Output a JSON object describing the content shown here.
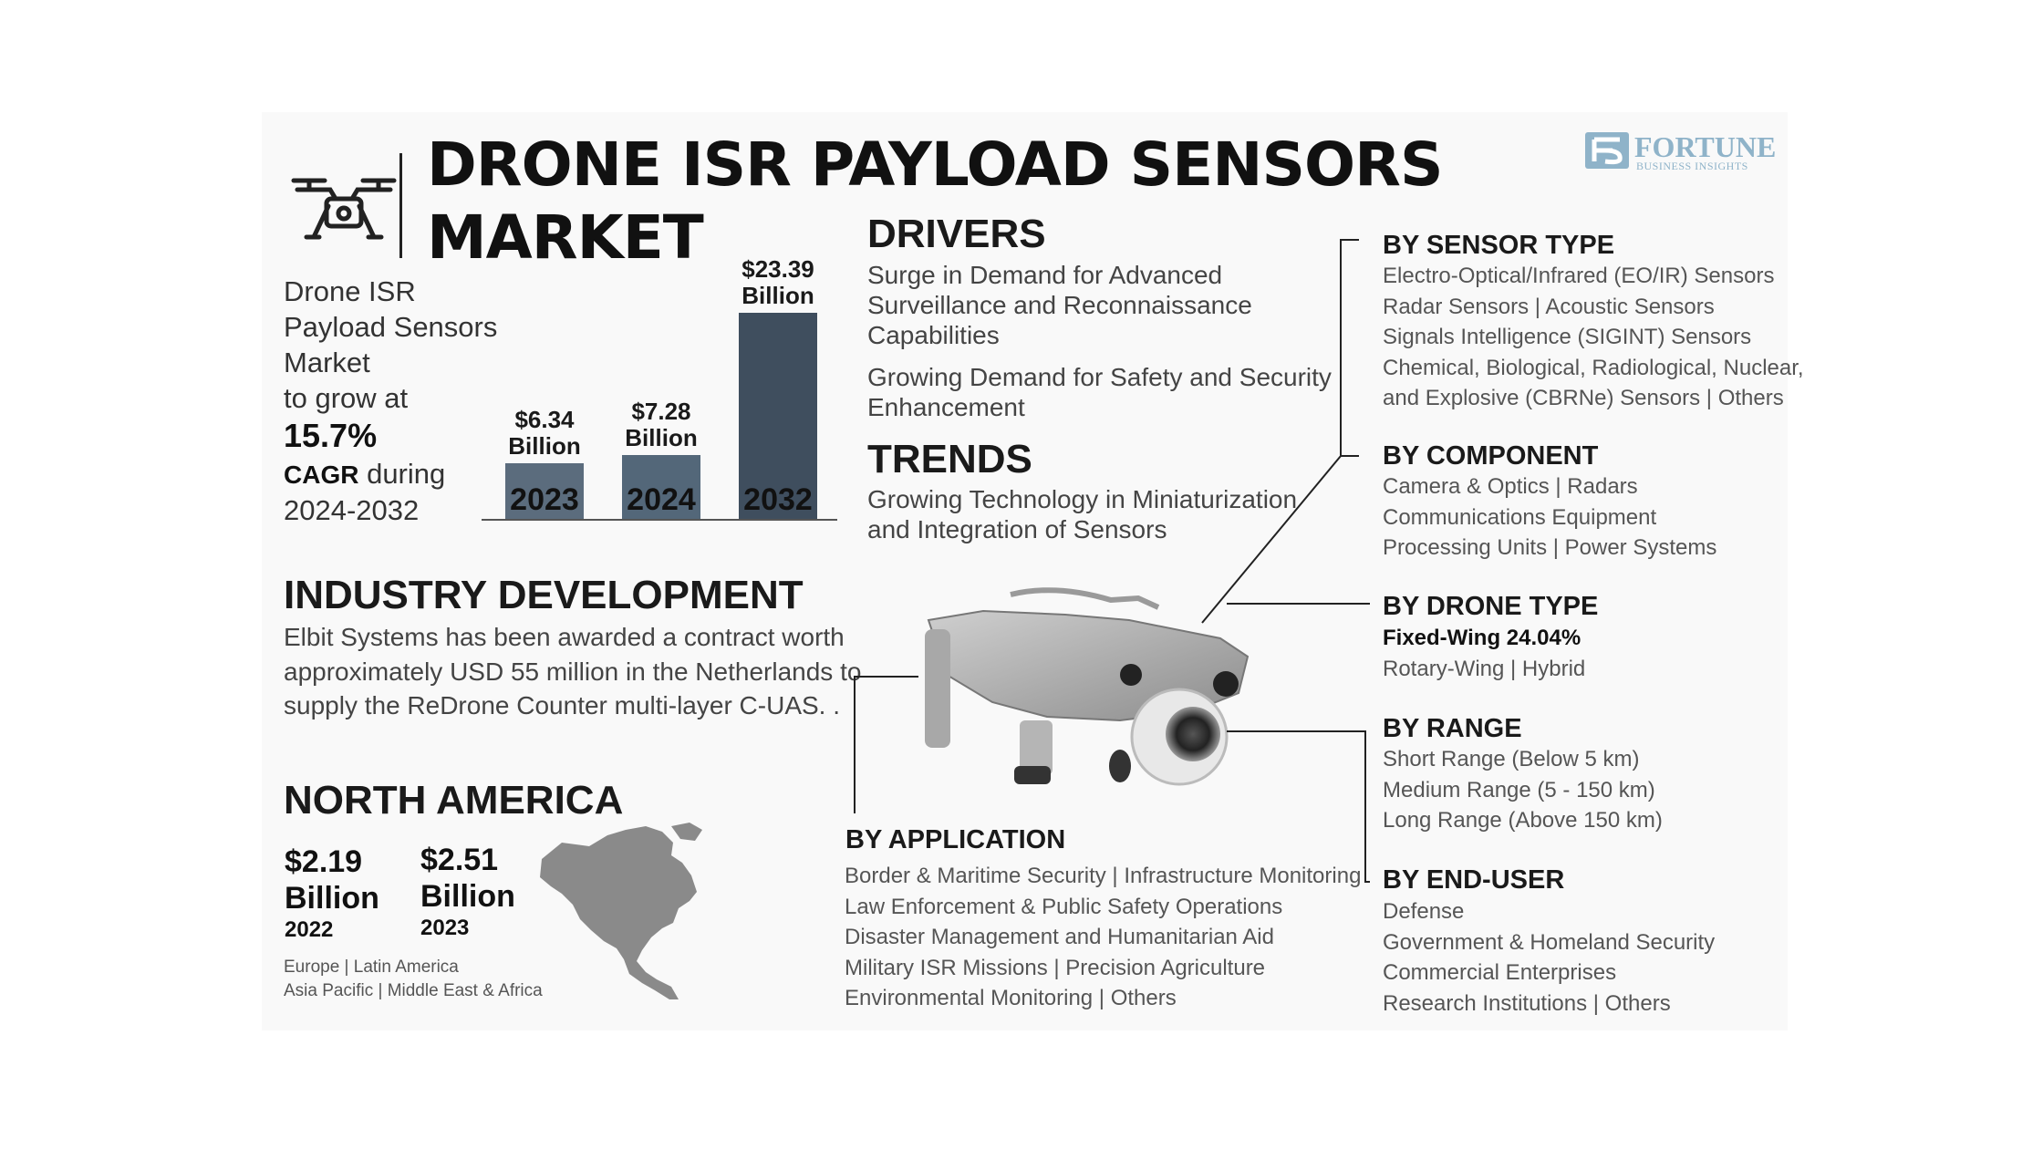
{
  "title": {
    "line1": "DRONE ISR PAYLOAD SENSORS",
    "line2": "MARKET"
  },
  "logo": {
    "name": "FORTUNE",
    "tagline": "BUSINESS INSIGHTS",
    "color": "#8fb3c9"
  },
  "growth": {
    "l1": "Drone ISR",
    "l2": "Payload Sensors",
    "l3": "Market",
    "l4": "to grow at",
    "cagr": "15.7%",
    "cagr_label": "CAGR",
    "during": "during",
    "period": "2024-2032"
  },
  "bars": [
    {
      "year": "2023",
      "value_text": "$6.34",
      "unit": "Billion",
      "value": 6.34,
      "color": "#5b6c7d"
    },
    {
      "year": "2024",
      "value_text": "$7.28",
      "unit": "Billion",
      "value": 7.28,
      "color": "#536779"
    },
    {
      "year": "2032",
      "value_text": "$23.39",
      "unit": "Billion",
      "value": 23.39,
      "color": "#3f4e5e"
    }
  ],
  "drivers": {
    "heading": "DRIVERS",
    "items": [
      [
        "Surge in Demand for Advanced",
        "Surveillance and Reconnaissance",
        "Capabilities"
      ],
      [
        "Growing Demand for Safety and Security",
        "Enhancement"
      ]
    ]
  },
  "trends": {
    "heading": "TRENDS",
    "lines": [
      "Growing Technology in Miniaturization",
      "and Integration of Sensors"
    ]
  },
  "industry": {
    "heading": "INDUSTRY DEVELOPMENT",
    "lines": [
      "Elbit Systems has been awarded a contract worth",
      "approximately USD 55 million in the Netherlands to",
      "supply the ReDrone Counter multi-layer C-UAS. ."
    ]
  },
  "north_america": {
    "heading": "NORTH AMERICA",
    "v1": {
      "value": "$2.19",
      "unit": "Billion",
      "year": "2022"
    },
    "v2": {
      "value": "$2.51",
      "unit": "Billion",
      "year": "2023"
    },
    "regions": [
      "Europe |  Latin America",
      "Asia Pacific |  Middle East & Africa"
    ]
  },
  "segments": {
    "sensor_type": {
      "heading": "BY SENSOR TYPE",
      "lines": [
        "Electro-Optical/Infrared (EO/IR) Sensors",
        "Radar Sensors  |  Acoustic Sensors",
        "Signals Intelligence (SIGINT) Sensors",
        "Chemical, Biological, Radiological, Nuclear,",
        "and Explosive (CBRNe) Sensors  |  Others"
      ]
    },
    "component": {
      "heading": "BY COMPONENT",
      "lines": [
        "Camera & Optics  |  Radars",
        "Communications Equipment",
        "Processing Units  |  Power Systems"
      ]
    },
    "drone_type": {
      "heading": "BY DRONE TYPE",
      "highlight": "Fixed-Wing 24.04%",
      "lines": [
        "Rotary-Wing  |  Hybrid"
      ]
    },
    "range": {
      "heading": "BY RANGE",
      "lines": [
        "Short Range (Below 5 km)",
        "Medium Range (5 - 150 km)",
        "Long Range (Above 150 km)"
      ]
    },
    "end_user": {
      "heading": "BY END-USER",
      "lines": [
        "Defense",
        "Government & Homeland Security",
        "Commercial Enterprises",
        "Research Institutions  |  Others"
      ]
    },
    "application": {
      "heading": "BY APPLICATION",
      "lines": [
        "Border & Maritime Security  |  Infrastructure Monitoring",
        "Law Enforcement & Public Safety Operations",
        "Disaster Management and Humanitarian Aid",
        "Military ISR Missions  |  Precision Agriculture",
        "Environmental Monitoring  |  Others"
      ]
    }
  },
  "icons": {
    "header": "drone-outline-icon",
    "map": "north-america-map-icon",
    "photo": "drone-photo"
  }
}
